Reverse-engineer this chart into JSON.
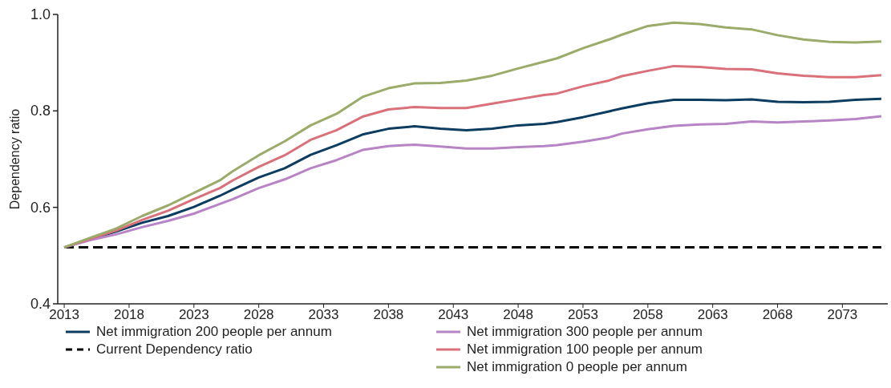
{
  "chart_data": {
    "type": "line",
    "ylabel": "Dependency ratio",
    "x": [
      2013,
      2015,
      2017,
      2019,
      2021,
      2023,
      2025,
      2026,
      2028,
      2030,
      2032,
      2034,
      2036,
      2038,
      2040,
      2042,
      2044,
      2046,
      2048,
      2050,
      2051,
      2053,
      2055,
      2056,
      2058,
      2060,
      2062,
      2064,
      2066,
      2068,
      2070,
      2072,
      2074,
      2076
    ],
    "xlim": [
      2012.5,
      2076.5
    ],
    "xticks": [
      2013,
      2018,
      2023,
      2028,
      2033,
      2038,
      2043,
      2048,
      2053,
      2058,
      2063,
      2068,
      2073
    ],
    "ylim": [
      0.4,
      1.0
    ],
    "yticks": [
      {
        "value": 0.4,
        "label": "0.4"
      },
      {
        "value": 0.6,
        "label": "0.6"
      },
      {
        "value": 0.8,
        "label": "0.8"
      },
      {
        "value": 1.0,
        "label": "1.0"
      }
    ],
    "grid": false,
    "legend": "bottom",
    "marker": "none",
    "series": [
      {
        "name": "Net immigration 200 people per annum",
        "color": "#0c3c60",
        "values": [
          0.517,
          0.534,
          0.55,
          0.568,
          0.582,
          0.601,
          0.624,
          0.637,
          0.662,
          0.681,
          0.709,
          0.729,
          0.751,
          0.763,
          0.768,
          0.763,
          0.76,
          0.763,
          0.77,
          0.773,
          0.777,
          0.787,
          0.799,
          0.805,
          0.816,
          0.823,
          0.823,
          0.822,
          0.824,
          0.819,
          0.818,
          0.819,
          0.823,
          0.825
        ]
      },
      {
        "name": "Current Dependency ratio",
        "color": "#000000",
        "line_style": "dashed",
        "x": [
          2013,
          2076
        ],
        "values": [
          0.517,
          0.517
        ]
      },
      {
        "name": "Net immigration 300 people per annum",
        "color": "#b784c6",
        "values": [
          0.517,
          0.532,
          0.544,
          0.559,
          0.572,
          0.587,
          0.607,
          0.617,
          0.64,
          0.658,
          0.681,
          0.698,
          0.719,
          0.727,
          0.73,
          0.726,
          0.722,
          0.722,
          0.725,
          0.727,
          0.729,
          0.736,
          0.745,
          0.753,
          0.762,
          0.769,
          0.772,
          0.773,
          0.778,
          0.776,
          0.778,
          0.78,
          0.783,
          0.789
        ]
      },
      {
        "name": "Net immigration 100 people per annum",
        "color": "#d9707a",
        "values": [
          0.517,
          0.535,
          0.552,
          0.574,
          0.593,
          0.617,
          0.64,
          0.656,
          0.684,
          0.708,
          0.74,
          0.76,
          0.788,
          0.803,
          0.808,
          0.806,
          0.806,
          0.815,
          0.824,
          0.833,
          0.836,
          0.851,
          0.863,
          0.872,
          0.883,
          0.893,
          0.891,
          0.887,
          0.886,
          0.878,
          0.873,
          0.87,
          0.87,
          0.874
        ]
      },
      {
        "name": "Net immigration 0 people per annum",
        "color": "#9aab6a",
        "values": [
          0.517,
          0.537,
          0.556,
          0.582,
          0.604,
          0.63,
          0.656,
          0.675,
          0.708,
          0.737,
          0.77,
          0.794,
          0.829,
          0.847,
          0.857,
          0.858,
          0.863,
          0.873,
          0.888,
          0.902,
          0.909,
          0.93,
          0.948,
          0.958,
          0.976,
          0.983,
          0.98,
          0.973,
          0.969,
          0.957,
          0.948,
          0.943,
          0.942,
          0.944
        ]
      }
    ]
  }
}
